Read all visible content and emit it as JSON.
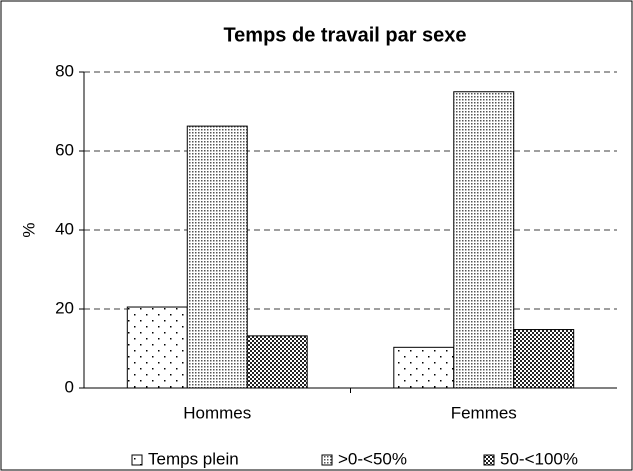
{
  "chart_data": {
    "type": "bar",
    "title": "Temps de travail par sexe",
    "y_label": "%",
    "categories": [
      "Hommes",
      "Femmes"
    ],
    "series": [
      {
        "name": "Temps plein",
        "color": "#ffffff",
        "pattern": "sparse-dots",
        "values": [
          20.5,
          10.3
        ]
      },
      {
        "name": ">0-<50%",
        "color": "#ffffff",
        "pattern": "dense-dots",
        "values": [
          66.3,
          75
        ]
      },
      {
        "name": "50-<100%",
        "color": "#ffffff",
        "pattern": "checker",
        "values": [
          13.2,
          14.8
        ]
      }
    ],
    "ylim": [
      0,
      80
    ],
    "yticks": [
      0,
      20,
      40,
      60,
      80
    ],
    "grid": true,
    "legend": "bottom"
  }
}
